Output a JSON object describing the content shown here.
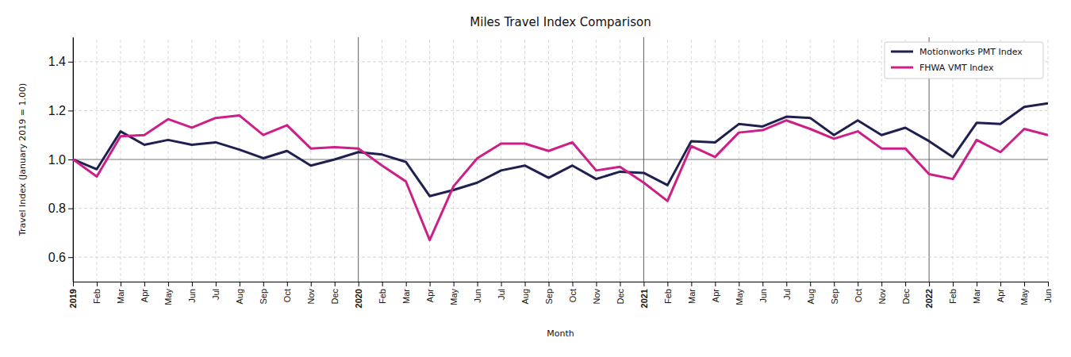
{
  "chart_data": {
    "type": "line",
    "title": "Miles Travel Index Comparison",
    "x_label": "Month",
    "y_label": "Travel Index (January 2019 = 1.00)",
    "categories": [
      "2019",
      "Feb",
      "Mar",
      "Apr",
      "May",
      "Jun",
      "Jul",
      "Aug",
      "Sep",
      "Oct",
      "Nov",
      "Dec",
      "2020",
      "Feb",
      "Mar",
      "Apr",
      "May",
      "Jun",
      "Jul",
      "Aug",
      "Sep",
      "Oct",
      "Nov",
      "Dec",
      "2021",
      "Feb",
      "Mar",
      "Apr",
      "May",
      "Jun",
      "Jul",
      "Aug",
      "Sep",
      "Oct",
      "Nov",
      "Dec",
      "2022",
      "Feb",
      "Mar",
      "Apr",
      "May",
      "Jun"
    ],
    "series": [
      {
        "name": "Motionworks PMT Index",
        "color": "#1f2050",
        "values": [
          1.0,
          0.96,
          1.115,
          1.06,
          1.08,
          1.06,
          1.07,
          1.04,
          1.005,
          1.035,
          0.975,
          1.0,
          1.03,
          1.02,
          0.99,
          0.85,
          0.875,
          0.905,
          0.955,
          0.975,
          0.925,
          0.975,
          0.92,
          0.95,
          0.945,
          0.895,
          1.075,
          1.07,
          1.145,
          1.135,
          1.175,
          1.17,
          1.1,
          1.16,
          1.1,
          1.13,
          1.075,
          1.01,
          1.15,
          1.145,
          1.215,
          1.23
        ]
      },
      {
        "name": "FHWA VMT Index",
        "color": "#cc1f87",
        "values": [
          1.0,
          0.93,
          1.095,
          1.1,
          1.165,
          1.13,
          1.17,
          1.18,
          1.1,
          1.14,
          1.045,
          1.05,
          1.045,
          0.975,
          0.91,
          0.67,
          0.89,
          1.005,
          1.065,
          1.065,
          1.035,
          1.07,
          0.955,
          0.97,
          0.905,
          0.83,
          1.055,
          1.01,
          1.11,
          1.12,
          1.16,
          1.125,
          1.085,
          1.115,
          1.045,
          1.045,
          0.94,
          0.92,
          1.08,
          1.03,
          1.125,
          1.1
        ]
      }
    ],
    "ylim": [
      0.5,
      1.5
    ],
    "yticks": [
      0.6,
      0.8,
      {
        "value": 1,
        "label": "1.0"
      },
      1.2,
      1.4
    ],
    "grid": true,
    "legend": "upper right"
  }
}
